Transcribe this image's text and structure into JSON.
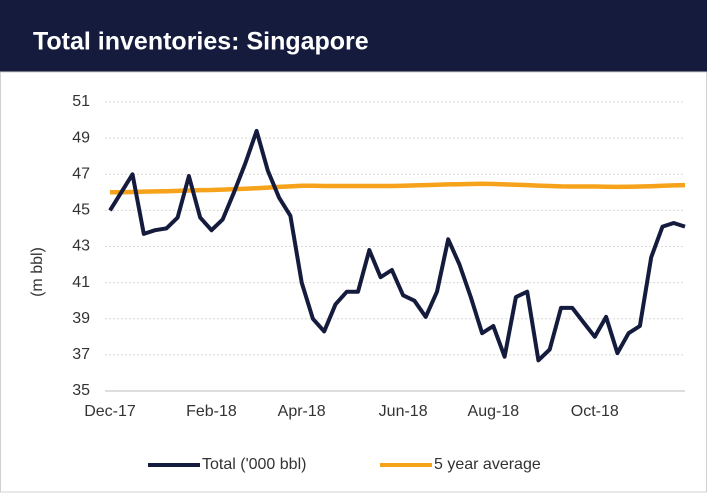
{
  "chart_data": {
    "type": "line",
    "title": "Total inventories: Singapore",
    "ylabel": "(m bbl)",
    "categories": [
      "Dec-17",
      null,
      null,
      null,
      null,
      null,
      null,
      null,
      null,
      "Feb-18",
      null,
      null,
      null,
      null,
      null,
      null,
      null,
      "Apr-18",
      null,
      null,
      null,
      null,
      null,
      null,
      null,
      null,
      "Jun-18",
      null,
      null,
      null,
      null,
      null,
      null,
      null,
      "Aug-18",
      null,
      null,
      null,
      null,
      null,
      null,
      null,
      null,
      "Oct-18",
      null,
      null,
      null,
      null,
      null,
      null,
      null,
      null
    ],
    "series": [
      {
        "name": "Total ('000 bbl)",
        "color": "#141b3d",
        "values": [
          45.0,
          46.0,
          47.0,
          43.7,
          43.9,
          44.0,
          44.6,
          46.9,
          44.6,
          43.9,
          44.5,
          46.0,
          47.6,
          49.4,
          47.2,
          45.7,
          44.7,
          41.0,
          39.0,
          38.3,
          39.8,
          40.5,
          40.5,
          42.8,
          41.3,
          41.7,
          40.3,
          40.0,
          39.1,
          40.5,
          43.4,
          42.0,
          40.2,
          38.2,
          38.6,
          36.9,
          40.2,
          40.5,
          36.7,
          37.3,
          39.6,
          39.6,
          38.8,
          38.0,
          39.1,
          37.1,
          38.2,
          38.6,
          42.4,
          44.1,
          44.3,
          44.1
        ]
      },
      {
        "name": "5 year average",
        "color": "#f7a21b",
        "values": [
          46.0,
          46.0,
          46.02,
          46.04,
          46.05,
          46.06,
          46.08,
          46.1,
          46.12,
          46.13,
          46.15,
          46.18,
          46.2,
          46.23,
          46.26,
          46.3,
          46.33,
          46.36,
          46.36,
          46.35,
          46.35,
          46.35,
          46.35,
          46.35,
          46.35,
          46.35,
          46.36,
          46.38,
          46.4,
          46.42,
          46.44,
          46.45,
          46.46,
          46.47,
          46.46,
          46.44,
          46.42,
          46.4,
          46.37,
          46.35,
          46.33,
          46.32,
          46.32,
          46.32,
          46.31,
          46.3,
          46.31,
          46.32,
          46.34,
          46.36,
          46.38,
          46.4
        ]
      }
    ],
    "ylim": [
      35,
      51
    ],
    "yticks": [
      35,
      37,
      39,
      41,
      43,
      45,
      47,
      49,
      51
    ],
    "grid": true,
    "legend": "bottom"
  }
}
